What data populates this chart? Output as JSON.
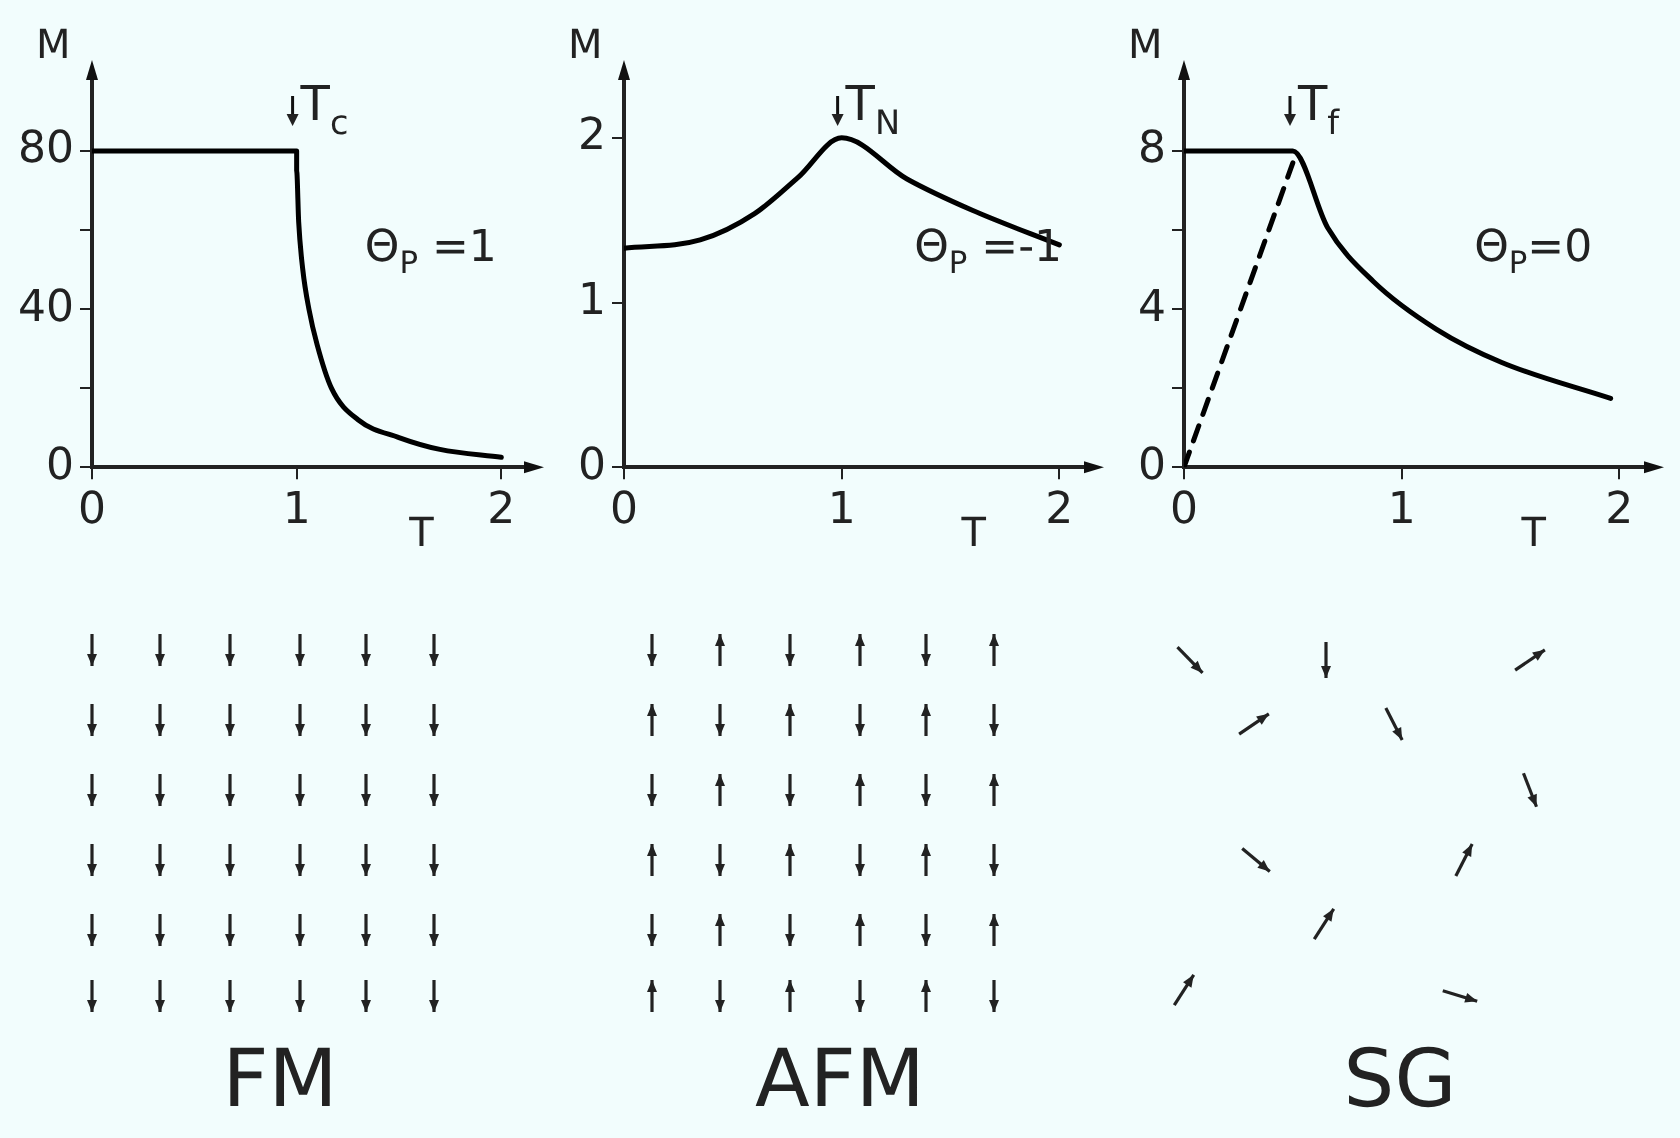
{
  "chart_data": [
    {
      "type": "line",
      "title": "FM",
      "xlabel": "T",
      "ylabel": "M",
      "xlim": [
        0,
        2.15
      ],
      "ylim": [
        0,
        100
      ],
      "xticks": [
        0,
        1,
        2
      ],
      "yticks": [
        0,
        {
          "value": 20,
          "label": null
        },
        40,
        {
          "value": 60,
          "label": null
        },
        80
      ],
      "series": [
        {
          "color": "#000000",
          "x": [
            0,
            1,
            1,
            1.01,
            1.03,
            1.06,
            1.1,
            1.17,
            1.3,
            1.5,
            1.7,
            2
          ],
          "values": [
            80,
            80,
            75,
            62,
            50,
            40,
            31,
            20,
            12,
            7.5,
            4.5,
            2.5
          ]
        }
      ],
      "annotations": [
        "T$_{c}$",
        "Θ$_{P}$ =1"
      ]
    },
    {
      "type": "line",
      "title": "AFM",
      "xlabel": "T",
      "ylabel": "M",
      "xlim": [
        0,
        2.15
      ],
      "ylim": [
        0,
        2.4
      ],
      "xticks": [
        0,
        1,
        2
      ],
      "yticks": [
        0,
        1,
        2
      ],
      "series": [
        {
          "color": "#000000",
          "x": [
            0,
            0.35,
            0.6,
            0.8,
            1,
            1.3,
            1.6,
            2
          ],
          "values": [
            1.33,
            1.38,
            1.54,
            1.76,
            2,
            1.75,
            1.56,
            1.35
          ]
        }
      ],
      "annotations": [
        "T$_{N}$",
        "Θ$_{P}$ =-1"
      ]
    },
    {
      "type": "line",
      "title": "SG",
      "xlabel": "T",
      "ylabel": "M",
      "xlim": [
        0,
        2.15
      ],
      "ylim": [
        0,
        10
      ],
      "xticks": [
        0,
        1,
        2
      ],
      "yticks": [
        0,
        {
          "value": 2,
          "label": null
        },
        4,
        {
          "value": 6,
          "label": null
        },
        8
      ],
      "series": [
        {
          "color": "#000000",
          "x": [
            0,
            0.5,
            0.66,
            0.87,
            1.16,
            1.46,
            1.96
          ],
          "values": [
            8,
            8,
            6.06,
            4.7,
            3.49,
            2.65,
            1.74
          ]
        },
        {
          "color": "#000000",
          "line_style": "dashed",
          "x": [
            0,
            0.5
          ],
          "values": [
            0,
            7.7
          ]
        }
      ],
      "annotations": [
        "T$_{f}$",
        "Θ$_{P}$=0"
      ]
    }
  ]
}
